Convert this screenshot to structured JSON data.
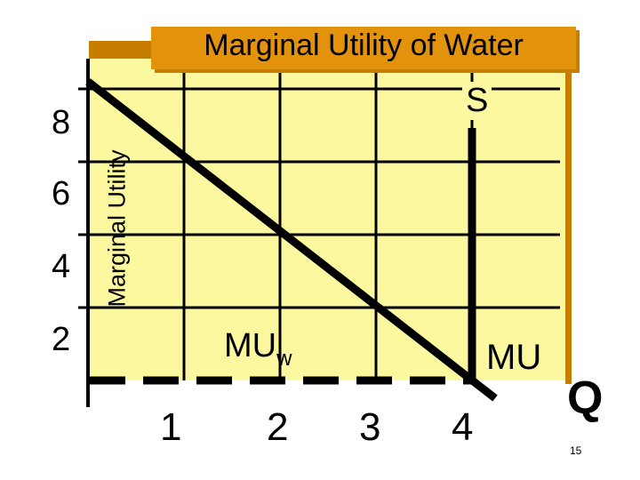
{
  "chart_data": {
    "type": "line",
    "title": "Marginal Utility of Water",
    "ylabel": "Marginal Utility",
    "xlabel": "Q",
    "x_ticks": [
      "1",
      "2",
      "3",
      "4"
    ],
    "y_ticks": [
      "2",
      "4",
      "6",
      "8"
    ],
    "xlim": [
      0,
      4.8
    ],
    "ylim": [
      0,
      9
    ],
    "series": [
      {
        "name": "MUw",
        "x": [
          0,
          4
        ],
        "y": [
          8.2,
          0
        ],
        "style": "solid"
      }
    ],
    "supply": {
      "name": "S",
      "x": 4,
      "y_range": [
        0,
        8
      ]
    },
    "price_line": {
      "y": 0,
      "style": "dashed"
    },
    "annotations": {
      "supply_label": "S",
      "curve_label_main": "MU",
      "curve_label_sub": "w",
      "mu_label": "MU"
    },
    "grid": true
  },
  "page_number": "15",
  "colors": {
    "plot_background": "#fcf8a0",
    "title_background": "#e3920b",
    "frame": "#c77d00",
    "line": "#000000"
  }
}
